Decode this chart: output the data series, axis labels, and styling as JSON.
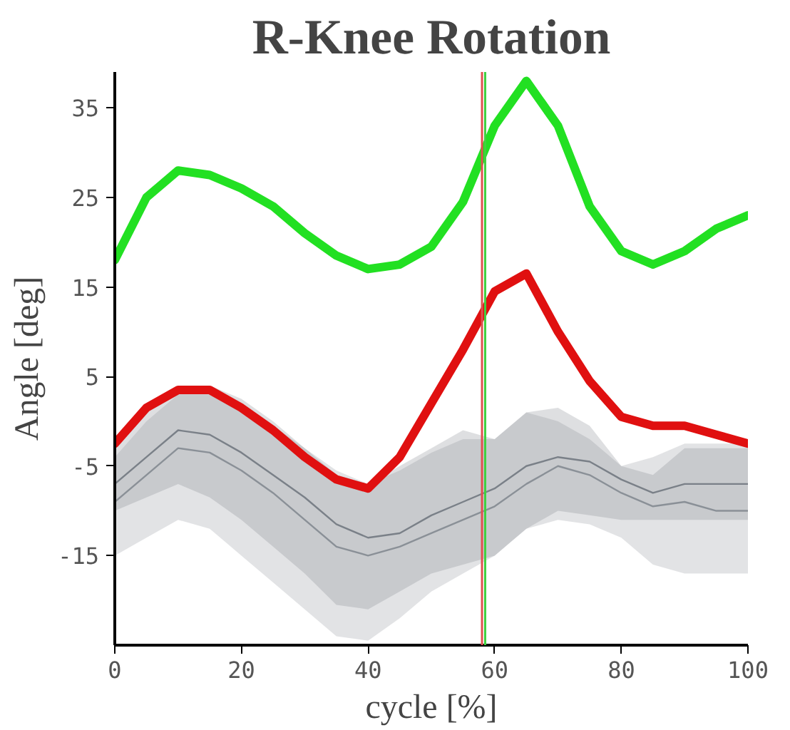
{
  "chart_data": {
    "type": "line",
    "title": "R-Knee Rotation",
    "xlabel": "cycle [%]",
    "ylabel": "Angle [deg]",
    "xlim": [
      0,
      100
    ],
    "ylim": [
      -25,
      39
    ],
    "xticks": [
      0,
      20,
      40,
      60,
      80,
      100
    ],
    "yticks": [
      -15,
      -5,
      5,
      15,
      25,
      35
    ],
    "grid": false,
    "line_style": "solid",
    "marker": "none",
    "x": [
      0,
      5,
      10,
      15,
      20,
      25,
      30,
      35,
      40,
      45,
      50,
      55,
      60,
      65,
      70,
      75,
      80,
      85,
      90,
      95,
      100
    ],
    "series": [
      {
        "color": "#8a9097",
        "values": [
          -9,
          -6,
          -3,
          -3.5,
          -5.5,
          -8,
          -11,
          -14,
          -15,
          -14,
          -12.5,
          -11,
          -9.5,
          -7,
          -5,
          -6,
          -8,
          -9.5,
          -9,
          -10,
          -10
        ],
        "lower": [
          -15,
          -13,
          -11,
          -12,
          -15,
          -18,
          -21,
          -24,
          -24.5,
          -22,
          -19,
          -17,
          -15,
          -12,
          -11,
          -11.5,
          -13,
          -16,
          -17,
          -17,
          -17
        ],
        "upper": [
          -4,
          0,
          3,
          3,
          2,
          -0.5,
          -3,
          -5.5,
          -7,
          -5.5,
          -3.5,
          -2,
          -2,
          1,
          0,
          -2,
          -5,
          -4,
          -2.5,
          -2.5,
          -2.5
        ]
      },
      {
        "color": "#7a8088",
        "values": [
          -7,
          -4,
          -1,
          -1.5,
          -3.5,
          -6,
          -8.5,
          -11.5,
          -13,
          -12.5,
          -10.5,
          -9,
          -7.5,
          -5,
          -4,
          -4.5,
          -6.5,
          -8,
          -7,
          -7,
          -7
        ],
        "lower": [
          -10,
          -8.5,
          -7,
          -8.5,
          -11,
          -14,
          -17,
          -20.5,
          -21,
          -19,
          -17,
          -16,
          -15,
          -12,
          -10,
          -10.5,
          -11,
          -11,
          -11,
          -11,
          -11
        ],
        "upper": [
          -3,
          1,
          4,
          4,
          2.5,
          0,
          -3,
          -6,
          -7,
          -5,
          -3,
          -1,
          -2,
          1,
          1.5,
          -0.5,
          -5,
          -6,
          -3,
          -3,
          -3
        ]
      },
      {
        "color": "#e01010",
        "values": [
          -2.5,
          1.5,
          3.5,
          3.5,
          1.5,
          -1,
          -4,
          -6.5,
          -7.5,
          -4,
          2,
          8,
          14.5,
          16.5,
          10,
          4.5,
          0.5,
          -0.5,
          -0.5,
          -1.5,
          -2.5
        ]
      },
      {
        "color": "#22e022",
        "values": [
          18,
          25,
          28,
          27.5,
          26,
          24,
          21,
          18.5,
          17,
          17.5,
          19.5,
          24.5,
          33,
          38,
          33,
          24,
          19,
          17.5,
          19,
          21.5,
          23
        ]
      }
    ],
    "ref_lines": [
      {
        "axis": "x",
        "value": 58,
        "color": "#e05050"
      },
      {
        "axis": "x",
        "value": 58.5,
        "color": "#40d040"
      }
    ]
  }
}
